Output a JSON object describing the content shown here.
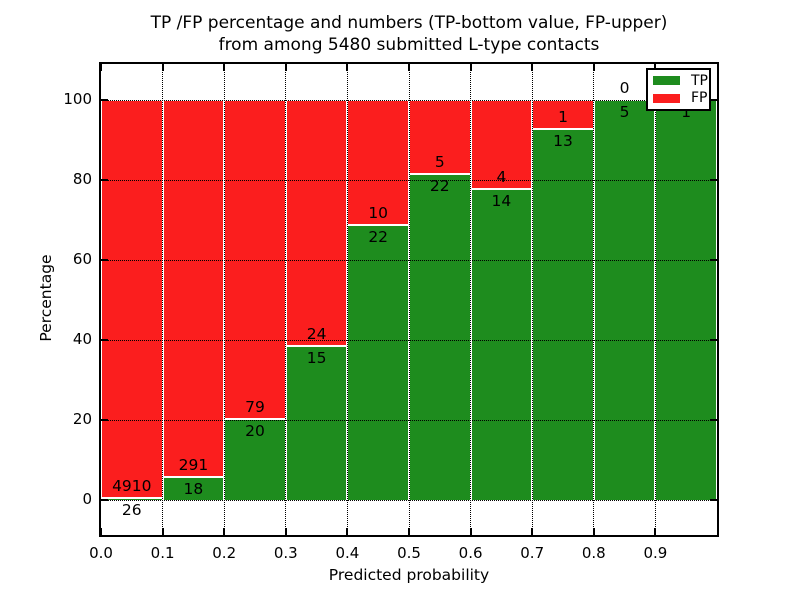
{
  "title": {
    "line1": "TP /FP percentage and numbers (TP-bottom value, FP-upper)",
    "line2": "from among 5480 submitted L-type contacts"
  },
  "axes": {
    "xlabel": "Predicted probability",
    "ylabel": "Percentage",
    "x_tick_labels": [
      "0.0",
      "0.1",
      "0.2",
      "0.3",
      "0.4",
      "0.5",
      "0.6",
      "0.7",
      "0.8",
      "0.9"
    ],
    "y_tick_labels": [
      "0",
      "20",
      "40",
      "60",
      "80",
      "100"
    ],
    "y_tick_values": [
      0,
      20,
      40,
      60,
      80,
      100
    ]
  },
  "legend": {
    "items": [
      {
        "label": "TP",
        "color": "#1e8c1e"
      },
      {
        "label": "FP",
        "color": "#fb1e1e"
      }
    ]
  },
  "chart_data": {
    "type": "bar",
    "stacked": true,
    "grid": true,
    "legend_position": "upper right",
    "title": "TP /FP percentage and numbers (TP-bottom value, FP-upper) from among 5480 submitted L-type contacts",
    "xlabel": "Predicted probability",
    "ylabel": "Percentage",
    "total_contacts": 5480,
    "x_bin_edges": [
      0.0,
      0.1,
      0.2,
      0.3,
      0.4,
      0.5,
      0.6,
      0.7,
      0.8,
      0.9,
      1.0
    ],
    "ylim": [
      0,
      100
    ],
    "series": [
      {
        "name": "TP",
        "color": "#1e8c1e",
        "counts": [
          26,
          18,
          20,
          15,
          22,
          22,
          14,
          13,
          5,
          1
        ],
        "pct": [
          0.53,
          5.83,
          20.2,
          38.46,
          68.75,
          81.48,
          77.78,
          92.86,
          100.0,
          100.0
        ]
      },
      {
        "name": "FP",
        "color": "#fb1e1e",
        "counts": [
          4910,
          291,
          79,
          24,
          10,
          5,
          4,
          1,
          0,
          0
        ],
        "pct": [
          99.47,
          94.17,
          79.8,
          61.54,
          31.25,
          18.52,
          22.22,
          7.14,
          0.0,
          0.0
        ]
      }
    ],
    "annotation_note": "FP count printed above TP/FP boundary, TP count below"
  }
}
